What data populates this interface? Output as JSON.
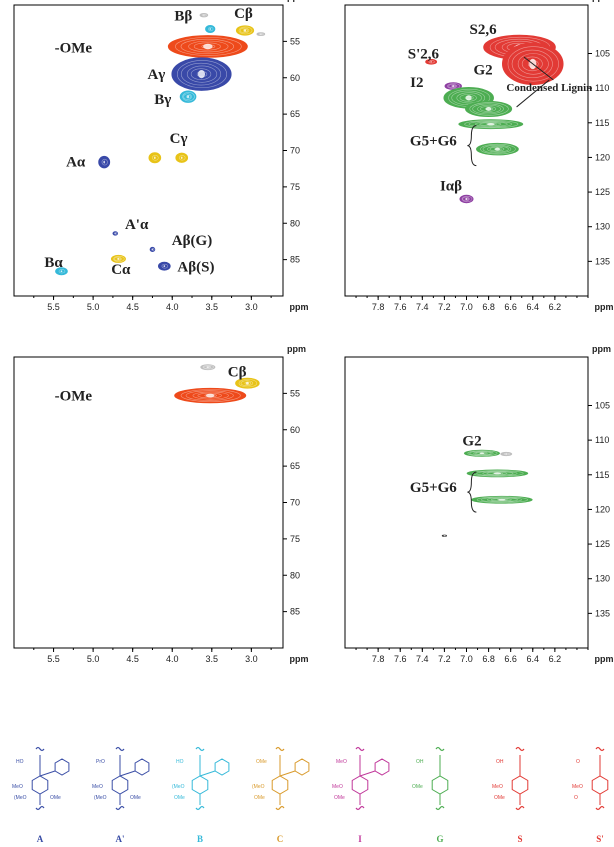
{
  "chart_data": [
    {
      "type": "scatter",
      "ppm_unit": "ppm",
      "x_range": [
        6.0,
        2.6
      ],
      "y_range": [
        50,
        90
      ],
      "x_ticks": [
        "5.5",
        "5.0",
        "4.5",
        "4.0",
        "3.5",
        "3.0"
      ],
      "y_ticks": [
        "55",
        "60",
        "65",
        "70",
        "75",
        "80",
        "85"
      ],
      "x_tick_values": [
        5.5,
        5.0,
        4.5,
        4.0,
        3.5,
        3.0
      ],
      "y_tick_values": [
        55,
        60,
        65,
        70,
        75,
        80,
        85
      ],
      "peaks": [
        {
          "id": "OMe",
          "x": 3.55,
          "y": 55.7,
          "w": 1.0,
          "h": 3.0,
          "color": "#ee4a1b",
          "label": "-OMe",
          "lx": 5.25,
          "ly": 56.5
        },
        {
          "id": "Bb",
          "x": 3.52,
          "y": 53.3,
          "w": 0.12,
          "h": 1.0,
          "color": "#35b9d9",
          "label": "Bβ",
          "lx": 3.86,
          "ly": 52.1
        },
        {
          "id": "Cb",
          "x": 3.08,
          "y": 53.5,
          "w": 0.22,
          "h": 1.3,
          "color": "#e8c318",
          "label": "Cβ",
          "lx": 3.1,
          "ly": 51.8
        },
        {
          "id": "g1",
          "x": 3.6,
          "y": 51.4,
          "w": 0.1,
          "h": 0.5,
          "color": "#bfbfbf",
          "label": "",
          "lx": 0,
          "ly": 0
        },
        {
          "id": "g2",
          "x": 2.88,
          "y": 54.0,
          "w": 0.1,
          "h": 0.4,
          "color": "#bfbfbf",
          "label": "",
          "lx": 0,
          "ly": 0
        },
        {
          "id": "Ag",
          "x": 3.63,
          "y": 59.5,
          "w": 0.75,
          "h": 4.5,
          "color": "#3949a8",
          "label": "Aγ",
          "lx": 4.2,
          "ly": 60.2
        },
        {
          "id": "Bg",
          "x": 3.8,
          "y": 62.6,
          "w": 0.2,
          "h": 1.6,
          "color": "#35b9d9",
          "label": "Bγ",
          "lx": 4.12,
          "ly": 63.6
        },
        {
          "id": "Cg1",
          "x": 4.22,
          "y": 71.0,
          "w": 0.15,
          "h": 1.4,
          "color": "#e8c318",
          "label": "Cγ",
          "lx": 3.92,
          "ly": 69.0
        },
        {
          "id": "Cg2",
          "x": 3.88,
          "y": 71.0,
          "w": 0.15,
          "h": 1.3,
          "color": "#e8c318",
          "label": "",
          "lx": 0,
          "ly": 0
        },
        {
          "id": "Aa",
          "x": 4.86,
          "y": 71.6,
          "w": 0.14,
          "h": 1.6,
          "color": "#3949a8",
          "label": "Aα",
          "lx": 5.22,
          "ly": 72.2
        },
        {
          "id": "Apa",
          "x": 4.72,
          "y": 81.4,
          "w": 0.06,
          "h": 0.5,
          "color": "#3949a8",
          "label": "A'α",
          "lx": 4.45,
          "ly": 80.8
        },
        {
          "id": "AbG",
          "x": 4.25,
          "y": 83.6,
          "w": 0.06,
          "h": 0.6,
          "color": "#3949a8",
          "label": "Aβ(G)",
          "lx": 3.75,
          "ly": 83.0
        },
        {
          "id": "Ca",
          "x": 4.68,
          "y": 84.9,
          "w": 0.18,
          "h": 1.0,
          "color": "#e8c318",
          "label": "Cα",
          "lx": 4.65,
          "ly": 87.0
        },
        {
          "id": "AbS",
          "x": 4.1,
          "y": 85.9,
          "w": 0.15,
          "h": 1.1,
          "color": "#3949a8",
          "label": "Aβ(S)",
          "lx": 3.7,
          "ly": 86.6
        },
        {
          "id": "Ba",
          "x": 5.4,
          "y": 86.6,
          "w": 0.15,
          "h": 1.0,
          "color": "#35b9d9",
          "label": "Bα",
          "lx": 5.5,
          "ly": 86.0
        }
      ]
    },
    {
      "type": "scatter",
      "ppm_unit": "ppm",
      "x_range": [
        8.1,
        5.9
      ],
      "y_range": [
        98,
        140
      ],
      "x_ticks": [
        "7.8",
        "7.6",
        "7.4",
        "7.2",
        "7.0",
        "6.8",
        "6.6",
        "6.4",
        "6.2"
      ],
      "y_ticks": [
        "105",
        "110",
        "115",
        "120",
        "125",
        "130",
        "135"
      ],
      "x_tick_values": [
        7.8,
        7.6,
        7.4,
        7.2,
        7.0,
        6.8,
        6.6,
        6.4,
        6.2
      ],
      "y_tick_values": [
        105,
        110,
        115,
        120,
        125,
        130,
        135
      ],
      "peaks": [
        {
          "id": "S26",
          "x": 6.52,
          "y": 104.1,
          "w": 0.65,
          "h": 3.5,
          "color": "#e23a35",
          "label": "S2,6",
          "lx": 6.85,
          "ly": 102.2
        },
        {
          "id": "Sp26",
          "x": 6.4,
          "y": 106.5,
          "w": 0.55,
          "h": 6.0,
          "color": "#e23a35",
          "label": "S'2,6",
          "lx": 7.39,
          "ly": 105.7
        },
        {
          "id": "Spsmall",
          "x": 7.32,
          "y": 106.2,
          "w": 0.1,
          "h": 0.7,
          "color": "#e23a35",
          "label": "",
          "lx": 0,
          "ly": 0
        },
        {
          "id": "I2",
          "x": 7.12,
          "y": 109.7,
          "w": 0.15,
          "h": 1.0,
          "color": "#8e3fa2",
          "label": "I2",
          "lx": 7.45,
          "ly": 109.8
        },
        {
          "id": "G2",
          "x": 6.98,
          "y": 111.4,
          "w": 0.45,
          "h": 3.0,
          "color": "#4dad52",
          "label": "G2",
          "lx": 6.85,
          "ly": 108.0
        },
        {
          "id": "CondL",
          "x": 6.8,
          "y": 113.0,
          "w": 0.42,
          "h": 2.2,
          "color": "#4dad52",
          "label": "Condensed Lignin",
          "lx": 6.25,
          "ly": 110.4
        },
        {
          "id": "G5",
          "x": 6.78,
          "y": 115.2,
          "w": 0.58,
          "h": 1.3,
          "color": "#4dad52",
          "label": "G5+G6",
          "lx": 7.3,
          "ly": 118.3
        },
        {
          "id": "G6",
          "x": 6.72,
          "y": 118.8,
          "w": 0.38,
          "h": 1.7,
          "color": "#4dad52",
          "label": "",
          "lx": 0,
          "ly": 0
        },
        {
          "id": "Iab",
          "x": 7.0,
          "y": 126.0,
          "w": 0.12,
          "h": 1.1,
          "color": "#8e3fa2",
          "label": "Iαβ",
          "lx": 7.14,
          "ly": 124.8
        }
      ]
    },
    {
      "type": "scatter",
      "ppm_unit": "ppm",
      "x_range": [
        6.0,
        2.6
      ],
      "y_range": [
        50,
        90
      ],
      "x_ticks": [
        "5.5",
        "5.0",
        "4.5",
        "4.0",
        "3.5",
        "3.0"
      ],
      "y_ticks": [
        "55",
        "60",
        "65",
        "70",
        "75",
        "80",
        "85"
      ],
      "x_tick_values": [
        5.5,
        5.0,
        4.5,
        4.0,
        3.5,
        3.0
      ],
      "y_tick_values": [
        55,
        60,
        65,
        70,
        75,
        80,
        85
      ],
      "peaks": [
        {
          "id": "OMe2",
          "x": 3.52,
          "y": 55.3,
          "w": 0.9,
          "h": 2.0,
          "color": "#ee4a1b",
          "label": "-OMe",
          "lx": 5.25,
          "ly": 56.0
        },
        {
          "id": "Cb2",
          "x": 3.05,
          "y": 53.6,
          "w": 0.3,
          "h": 1.4,
          "color": "#e8c318",
          "label": "Cβ",
          "lx": 3.18,
          "ly": 52.7
        },
        {
          "id": "g3",
          "x": 3.55,
          "y": 51.4,
          "w": 0.18,
          "h": 0.7,
          "color": "#bfbfbf",
          "label": "",
          "lx": 0,
          "ly": 0
        }
      ]
    },
    {
      "type": "scatter",
      "ppm_unit": "ppm",
      "x_range": [
        8.1,
        5.9
      ],
      "y_range": [
        98,
        140
      ],
      "x_ticks": [
        "7.8",
        "7.6",
        "7.4",
        "7.2",
        "7.0",
        "6.8",
        "6.6",
        "6.4",
        "6.2"
      ],
      "y_ticks": [
        "105",
        "110",
        "115",
        "120",
        "125",
        "130",
        "135"
      ],
      "x_tick_values": [
        7.8,
        7.6,
        7.4,
        7.2,
        7.0,
        6.8,
        6.6,
        6.4,
        6.2
      ],
      "y_tick_values": [
        105,
        110,
        115,
        120,
        125,
        130,
        135
      ],
      "peaks": [
        {
          "id": "G2b",
          "x": 6.86,
          "y": 111.9,
          "w": 0.32,
          "h": 0.9,
          "color": "#4dad52",
          "label": "G2",
          "lx": 6.95,
          "ly": 110.8
        },
        {
          "id": "g4",
          "x": 6.64,
          "y": 112.0,
          "w": 0.1,
          "h": 0.5,
          "color": "#bfbfbf",
          "label": "",
          "lx": 0,
          "ly": 0
        },
        {
          "id": "G5b",
          "x": 6.72,
          "y": 114.8,
          "w": 0.55,
          "h": 1.0,
          "color": "#4dad52",
          "label": "G5+G6",
          "lx": 7.3,
          "ly": 117.5
        },
        {
          "id": "G6b",
          "x": 6.68,
          "y": 118.6,
          "w": 0.55,
          "h": 1.0,
          "color": "#4dad52",
          "label": "",
          "lx": 0,
          "ly": 0
        },
        {
          "id": "dot",
          "x": 7.2,
          "y": 123.8,
          "w": 0.04,
          "h": 0.2,
          "color": "#333333",
          "label": "",
          "lx": 0,
          "ly": 0
        }
      ]
    }
  ],
  "structures": [
    {
      "label": "A",
      "color": "#3a4ea6",
      "texts": [
        "HO",
        "MeO",
        "(MeO",
        "OMe"
      ]
    },
    {
      "label": "A'",
      "color": "#3a4ea6",
      "texts": [
        "PrO",
        "MeO",
        "(MeO",
        "OMe"
      ]
    },
    {
      "label": "B",
      "color": "#35b9d9",
      "texts": [
        "HO",
        "(MeO",
        "OMe"
      ]
    },
    {
      "label": "C",
      "color": "#d99a2b",
      "texts": [
        "OMe",
        "(MeO",
        "OMe"
      ]
    },
    {
      "label": "I",
      "color": "#c0379a",
      "texts": [
        "MeO",
        "MeO",
        "OMe"
      ]
    },
    {
      "label": "G",
      "color": "#4dad52",
      "texts": [
        "OH",
        "OMe"
      ]
    },
    {
      "label": "S",
      "color": "#e23a35",
      "texts": [
        "OH",
        "MeO",
        "OMe"
      ]
    },
    {
      "label": "S'",
      "color": "#e23a35",
      "texts": [
        "O",
        "MeO",
        "O"
      ]
    }
  ],
  "colors": {
    "blue": "#3949a8",
    "cyan": "#35b9d9",
    "yellow": "#e8c318",
    "orange": "#ee4a1b",
    "red": "#e23a35",
    "green": "#4dad52",
    "purple": "#8e3fa2",
    "gray": "#bfbfbf"
  }
}
